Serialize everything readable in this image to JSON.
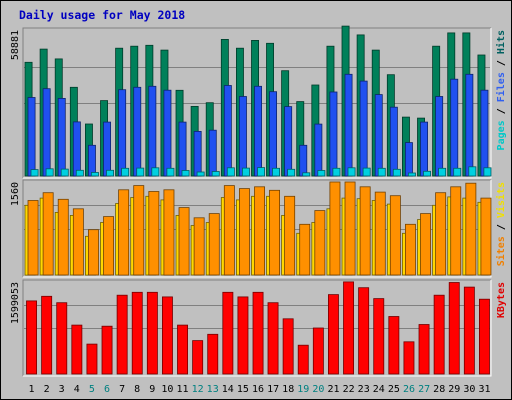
{
  "chart_data": {
    "type": "bar",
    "title": "Daily usage for May 2018",
    "days": [
      {
        "label": "1",
        "weekend": false
      },
      {
        "label": "2",
        "weekend": false
      },
      {
        "label": "3",
        "weekend": false
      },
      {
        "label": "4",
        "weekend": false
      },
      {
        "label": "5",
        "weekend": true
      },
      {
        "label": "6",
        "weekend": true
      },
      {
        "label": "7",
        "weekend": false
      },
      {
        "label": "8",
        "weekend": false
      },
      {
        "label": "9",
        "weekend": false
      },
      {
        "label": "10",
        "weekend": false
      },
      {
        "label": "11",
        "weekend": false
      },
      {
        "label": "12",
        "weekend": true
      },
      {
        "label": "13",
        "weekend": true
      },
      {
        "label": "14",
        "weekend": false
      },
      {
        "label": "15",
        "weekend": false
      },
      {
        "label": "16",
        "weekend": false
      },
      {
        "label": "17",
        "weekend": false
      },
      {
        "label": "18",
        "weekend": false
      },
      {
        "label": "19",
        "weekend": true
      },
      {
        "label": "20",
        "weekend": true
      },
      {
        "label": "21",
        "weekend": false
      },
      {
        "label": "22",
        "weekend": false
      },
      {
        "label": "23",
        "weekend": false
      },
      {
        "label": "24",
        "weekend": false
      },
      {
        "label": "25",
        "weekend": false
      },
      {
        "label": "26",
        "weekend": true
      },
      {
        "label": "27",
        "weekend": true
      },
      {
        "label": "28",
        "weekend": false
      },
      {
        "label": "29",
        "weekend": false
      },
      {
        "label": "30",
        "weekend": false
      },
      {
        "label": "31",
        "weekend": false
      }
    ],
    "panels": [
      {
        "max_label": "58881",
        "ymax": 58881,
        "legend": [
          {
            "text": "Pages",
            "color": "#00c8c8"
          },
          {
            "text": " / ",
            "color": "#000000"
          },
          {
            "text": "Files",
            "color": "#3060f0"
          },
          {
            "text": " / ",
            "color": "#000000"
          },
          {
            "text": "Hits",
            "color": "#006060"
          }
        ],
        "series": [
          {
            "name": "Hits",
            "color": "#00805a",
            "values": [
              45840,
              51160,
              47210,
              35780,
              20970,
              30390,
              51550,
              52340,
              52730,
              50760,
              34580,
              28070,
              29560,
              55100,
              51550,
              54700,
              53520,
              42450,
              30000,
              36700,
              52340,
              60460,
              56910,
              50760,
              40870,
              23740,
              23340,
              52340,
              57700,
              57700,
              48790
            ]
          },
          {
            "name": "Files",
            "color": "#2050f0",
            "values": [
              31670,
              35220,
              31280,
              21820,
              12370,
              21740,
              34820,
              35780,
              36180,
              34610,
              21740,
              18000,
              18480,
              36500,
              32070,
              36180,
              34000,
              28000,
              12370,
              20950,
              33860,
              41020,
              38280,
              32820,
              27750,
              13450,
              21740,
              32070,
              39050,
              41020,
              34610
            ]
          },
          {
            "name": "Pages",
            "color": "#00d0e0",
            "values": [
              2600,
              2900,
              2800,
              2300,
              1400,
              2300,
              3100,
              3200,
              3300,
              3100,
              2200,
              1600,
              1800,
              3300,
              3200,
              3400,
              3100,
              2700,
              1300,
              2200,
              3100,
              3300,
              3200,
              3100,
              2700,
              1200,
              1900,
              3100,
              3100,
              3700,
              3300
            ]
          }
        ]
      },
      {
        "max_label": "1560",
        "ymax": 1560,
        "legend": [
          {
            "text": "Sites",
            "color": "#f08000"
          },
          {
            "text": " / ",
            "color": "#000000"
          },
          {
            "text": "Visits",
            "color": "#f0e000"
          }
        ],
        "series": [
          {
            "name": "Visits",
            "color": "#ffd700",
            "values": [
              1170,
              1290,
              1050,
              1000,
              650,
              880,
              1200,
              1300,
              1320,
              1260,
              1000,
              830,
              880,
              1300,
              1260,
              1320,
              1320,
              1000,
              700,
              880,
              1110,
              1290,
              1280,
              1250,
              1190,
              700,
              930,
              1170,
              1310,
              1290,
              1220
            ]
          },
          {
            "name": "Sites",
            "color": "#ff9000",
            "values": [
              1250,
              1380,
              1270,
              1110,
              760,
              980,
              1430,
              1500,
              1400,
              1430,
              1130,
              960,
              1030,
              1500,
              1450,
              1480,
              1420,
              1320,
              850,
              1080,
              1560,
              1560,
              1480,
              1390,
              1330,
              850,
              1030,
              1380,
              1480,
              1540,
              1290
            ]
          }
        ]
      },
      {
        "max_label": "1599053",
        "ymax": 1599053,
        "legend": [
          {
            "text": "KBytes",
            "color": "#e00000"
          }
        ],
        "series": [
          {
            "name": "KBytes",
            "color": "#ff0000",
            "values": [
              1270000,
              1350000,
              1240000,
              850000,
              520000,
              830000,
              1370000,
              1420000,
              1420000,
              1340000,
              850000,
              580000,
              690000,
              1420000,
              1340000,
              1420000,
              1240000,
              960000,
              500000,
              800000,
              1380000,
              1600000,
              1500000,
              1310000,
              1000000,
              560000,
              860000,
              1370000,
              1590000,
              1510000,
              1300000
            ]
          }
        ]
      }
    ]
  }
}
